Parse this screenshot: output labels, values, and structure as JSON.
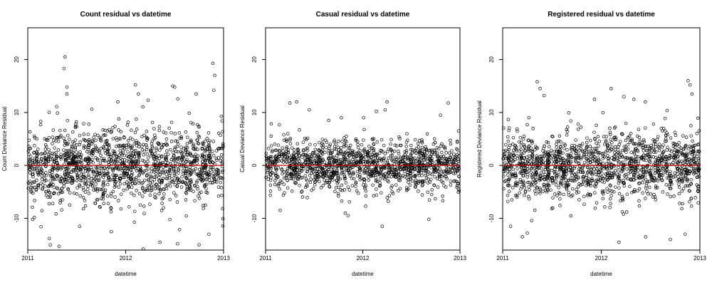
{
  "chart_data": [
    {
      "type": "scatter",
      "title": "Count residual vs datetime",
      "xlabel": "datetime",
      "ylabel": "Count Deviance Residual",
      "xlim": [
        2011,
        2013
      ],
      "ylim": [
        -16,
        26
      ],
      "x_ticks": [
        2011,
        2012,
        2013
      ],
      "y_ticks": [
        -10,
        0,
        10,
        20
      ],
      "hline": {
        "y": 0,
        "color": "#cc0000"
      },
      "grid": false,
      "legend": "none",
      "marker": "open-circle",
      "n_points": 1500,
      "clusters": 50,
      "core_spread": 3.2,
      "outliers": [
        {
          "x": 2011.38,
          "y": 20.5
        },
        {
          "x": 2011.37,
          "y": 18.3
        },
        {
          "x": 2011.4,
          "y": 14.8
        },
        {
          "x": 2011.4,
          "y": 13.5
        },
        {
          "x": 2011.92,
          "y": 12.0
        },
        {
          "x": 2012.1,
          "y": 15.2
        },
        {
          "x": 2012.13,
          "y": 13.5
        },
        {
          "x": 2012.23,
          "y": 12.3
        },
        {
          "x": 2012.48,
          "y": 15.0
        },
        {
          "x": 2012.5,
          "y": 14.8
        },
        {
          "x": 2012.89,
          "y": 19.3
        },
        {
          "x": 2012.91,
          "y": 17.0
        },
        {
          "x": 2012.9,
          "y": 14.2
        },
        {
          "x": 2012.72,
          "y": 13.5
        },
        {
          "x": 2011.22,
          "y": -13.8
        },
        {
          "x": 2011.23,
          "y": -15.0
        },
        {
          "x": 2011.32,
          "y": -15.3
        },
        {
          "x": 2011.53,
          "y": -11.5
        },
        {
          "x": 2012.18,
          "y": -15.8
        },
        {
          "x": 2012.35,
          "y": -14.5
        },
        {
          "x": 2012.53,
          "y": -14.8
        },
        {
          "x": 2012.75,
          "y": -15.0
        },
        {
          "x": 2012.85,
          "y": -13.0
        },
        {
          "x": 2011.05,
          "y": -10.2
        }
      ]
    },
    {
      "type": "scatter",
      "title": "Casual residual vs datetime",
      "xlabel": "datetime",
      "ylabel": "Casual Deviance Residual",
      "xlim": [
        2011,
        2013
      ],
      "ylim": [
        -16,
        26
      ],
      "x_ticks": [
        2011,
        2012,
        2013
      ],
      "y_ticks": [
        -10,
        0,
        10,
        20
      ],
      "hline": {
        "y": 0,
        "color": "#cc0000"
      },
      "grid": false,
      "legend": "none",
      "marker": "open-circle",
      "n_points": 1400,
      "clusters": 50,
      "core_spread": 2.2,
      "outliers": [
        {
          "x": 2011.25,
          "y": 11.8
        },
        {
          "x": 2011.32,
          "y": 12.0
        },
        {
          "x": 2011.45,
          "y": 10.5
        },
        {
          "x": 2011.65,
          "y": 8.5
        },
        {
          "x": 2011.78,
          "y": 9.0
        },
        {
          "x": 2012.14,
          "y": 10.2
        },
        {
          "x": 2012.25,
          "y": 12.0
        },
        {
          "x": 2012.23,
          "y": 10.5
        },
        {
          "x": 2012.8,
          "y": 9.5
        },
        {
          "x": 2012.88,
          "y": 11.8
        },
        {
          "x": 2012.2,
          "y": -11.5
        },
        {
          "x": 2011.82,
          "y": -9.0
        },
        {
          "x": 2011.85,
          "y": -9.5
        },
        {
          "x": 2012.68,
          "y": -10.2
        },
        {
          "x": 2011.15,
          "y": -8.5
        }
      ]
    },
    {
      "type": "scatter",
      "title": "Registered residual vs datetime",
      "xlabel": "datetime",
      "ylabel": "Registered Deviance Residual",
      "xlim": [
        2011,
        2013
      ],
      "ylim": [
        -16,
        26
      ],
      "x_ticks": [
        2011,
        2012,
        2013
      ],
      "y_ticks": [
        -10,
        0,
        10,
        20
      ],
      "hline": {
        "y": 0,
        "color": "#cc0000"
      },
      "grid": false,
      "legend": "none",
      "marker": "open-circle",
      "n_points": 1500,
      "clusters": 50,
      "core_spread": 3.0,
      "outliers": [
        {
          "x": 2011.35,
          "y": 15.8
        },
        {
          "x": 2011.38,
          "y": 14.5
        },
        {
          "x": 2011.42,
          "y": 13.2
        },
        {
          "x": 2011.93,
          "y": 12.5
        },
        {
          "x": 2012.1,
          "y": 14.5
        },
        {
          "x": 2012.23,
          "y": 13.0
        },
        {
          "x": 2012.33,
          "y": 12.5
        },
        {
          "x": 2012.88,
          "y": 16.0
        },
        {
          "x": 2012.9,
          "y": 15.2
        },
        {
          "x": 2012.92,
          "y": 13.5
        },
        {
          "x": 2011.2,
          "y": -13.5
        },
        {
          "x": 2011.25,
          "y": -12.8
        },
        {
          "x": 2012.18,
          "y": -14.5
        },
        {
          "x": 2012.45,
          "y": -13.5
        },
        {
          "x": 2012.7,
          "y": -14.0
        },
        {
          "x": 2012.85,
          "y": -13.0
        },
        {
          "x": 2011.08,
          "y": -11.5
        }
      ]
    }
  ]
}
